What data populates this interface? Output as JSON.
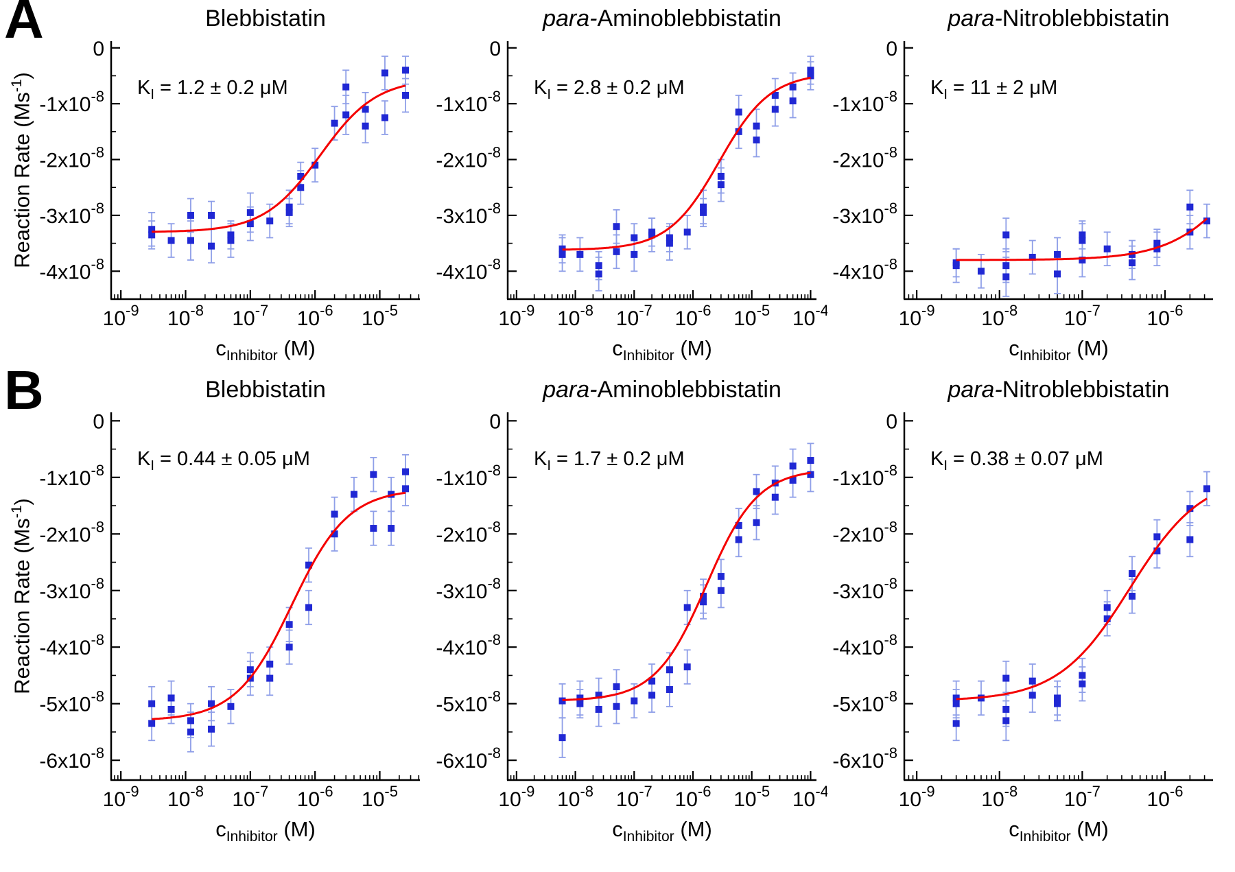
{
  "page": {
    "background": "#ffffff"
  },
  "rows": [
    {
      "letter": "A"
    },
    {
      "letter": "B"
    }
  ],
  "labels": {
    "y_axis": {
      "pre": "Reaction Rate (Ms",
      "sup": "-1",
      "post": ")"
    },
    "x_axis": {
      "pre": "c",
      "sub": "Inhibitor",
      "post": " (M)"
    },
    "tick_base": "10"
  },
  "colors": {
    "axis": "#000000",
    "point": "#2028d4",
    "error_bar": "#8f9fe8",
    "fit_line": "#f40000"
  },
  "chart_data": [
    {
      "type": "scatter",
      "title_italic": "",
      "title_rest": "Blebbistatin",
      "k_label": {
        "pre": "K",
        "sub": "I",
        "post": " = 1.2 ± 0.2 ",
        "unit": "μM"
      },
      "x_log_range": [
        -9.15,
        -4.38
      ],
      "x_ticks_exp": [
        -9,
        -8,
        -7,
        -6,
        -5
      ],
      "y_range": [
        -4.5,
        0.12
      ],
      "y_ticks": [
        0,
        -1,
        -2,
        -3,
        -4
      ],
      "y_unit_exp": -8,
      "fit": {
        "bottom": -3.3,
        "top": -0.55,
        "k_m": 1.2e-06
      },
      "points": [
        {
          "x": 3e-09,
          "y": -3.25,
          "e": 0.3
        },
        {
          "x": 3e-09,
          "y": -3.35,
          "e": 0.25
        },
        {
          "x": 6e-09,
          "y": -3.45,
          "e": 0.3
        },
        {
          "x": 1.2e-08,
          "y": -3.0,
          "e": 0.3
        },
        {
          "x": 1.2e-08,
          "y": -3.45,
          "e": 0.35
        },
        {
          "x": 2.5e-08,
          "y": -3.55,
          "e": 0.3
        },
        {
          "x": 2.5e-08,
          "y": -3.0,
          "e": 0.25
        },
        {
          "x": 5e-08,
          "y": -3.45,
          "e": 0.3
        },
        {
          "x": 5e-08,
          "y": -3.35,
          "e": 0.25
        },
        {
          "x": 1e-07,
          "y": -3.15,
          "e": 0.3
        },
        {
          "x": 1e-07,
          "y": -2.95,
          "e": 0.35
        },
        {
          "x": 2e-07,
          "y": -3.1,
          "e": 0.3
        },
        {
          "x": 4e-07,
          "y": -2.85,
          "e": 0.3
        },
        {
          "x": 4e-07,
          "y": -2.95,
          "e": 0.25
        },
        {
          "x": 6e-07,
          "y": -2.5,
          "e": 0.3
        },
        {
          "x": 6e-07,
          "y": -2.3,
          "e": 0.25
        },
        {
          "x": 1e-06,
          "y": -2.1,
          "e": 0.3
        },
        {
          "x": 2e-06,
          "y": -1.35,
          "e": 0.3
        },
        {
          "x": 3e-06,
          "y": -0.7,
          "e": 0.3
        },
        {
          "x": 3e-06,
          "y": -1.2,
          "e": 0.35
        },
        {
          "x": 6e-06,
          "y": -1.1,
          "e": 0.3
        },
        {
          "x": 6e-06,
          "y": -1.4,
          "e": 0.3
        },
        {
          "x": 1.2e-05,
          "y": -0.45,
          "e": 0.3
        },
        {
          "x": 1.2e-05,
          "y": -1.25,
          "e": 0.3
        },
        {
          "x": 2.5e-05,
          "y": -0.4,
          "e": 0.25
        },
        {
          "x": 2.5e-05,
          "y": -0.85,
          "e": 0.3
        }
      ]
    },
    {
      "type": "scatter",
      "title_italic": "para-",
      "title_rest": "Aminoblebbistatin",
      "k_label": {
        "pre": "K",
        "sub": "I",
        "post": " = 2.8 ± 0.2 ",
        "unit": "μM"
      },
      "x_log_range": [
        -9.15,
        -3.9
      ],
      "x_ticks_exp": [
        -9,
        -8,
        -7,
        -6,
        -5,
        -4
      ],
      "y_range": [
        -4.5,
        0.12
      ],
      "y_ticks": [
        0,
        -1,
        -2,
        -3,
        -4
      ],
      "y_unit_exp": -8,
      "fit": {
        "bottom": -3.62,
        "top": -0.45,
        "k_m": 2.8e-06
      },
      "points": [
        {
          "x": 6e-09,
          "y": -3.7,
          "e": 0.3
        },
        {
          "x": 6e-09,
          "y": -3.6,
          "e": 0.25
        },
        {
          "x": 1.2e-08,
          "y": -3.7,
          "e": 0.3
        },
        {
          "x": 2.5e-08,
          "y": -4.05,
          "e": 0.3
        },
        {
          "x": 2.5e-08,
          "y": -3.9,
          "e": 0.25
        },
        {
          "x": 5e-08,
          "y": -3.2,
          "e": 0.3
        },
        {
          "x": 5e-08,
          "y": -3.65,
          "e": 0.3
        },
        {
          "x": 1e-07,
          "y": -3.7,
          "e": 0.3
        },
        {
          "x": 1e-07,
          "y": -3.4,
          "e": 0.25
        },
        {
          "x": 2e-07,
          "y": -3.35,
          "e": 0.3
        },
        {
          "x": 2e-07,
          "y": -3.3,
          "e": 0.25
        },
        {
          "x": 4e-07,
          "y": -3.5,
          "e": 0.3
        },
        {
          "x": 4e-07,
          "y": -3.4,
          "e": 0.25
        },
        {
          "x": 8e-07,
          "y": -3.3,
          "e": 0.3
        },
        {
          "x": 1.5e-06,
          "y": -2.85,
          "e": 0.3
        },
        {
          "x": 1.5e-06,
          "y": -2.95,
          "e": 0.25
        },
        {
          "x": 3e-06,
          "y": -2.3,
          "e": 0.3
        },
        {
          "x": 3e-06,
          "y": -2.45,
          "e": 0.3
        },
        {
          "x": 6e-06,
          "y": -1.5,
          "e": 0.3
        },
        {
          "x": 6e-06,
          "y": -1.15,
          "e": 0.3
        },
        {
          "x": 1.2e-05,
          "y": -1.4,
          "e": 0.3
        },
        {
          "x": 1.2e-05,
          "y": -1.65,
          "e": 0.3
        },
        {
          "x": 2.5e-05,
          "y": -0.85,
          "e": 0.3
        },
        {
          "x": 2.5e-05,
          "y": -1.1,
          "e": 0.3
        },
        {
          "x": 5e-05,
          "y": -0.7,
          "e": 0.25
        },
        {
          "x": 5e-05,
          "y": -0.95,
          "e": 0.3
        },
        {
          "x": 0.0001,
          "y": -0.5,
          "e": 0.25
        },
        {
          "x": 0.0001,
          "y": -0.4,
          "e": 0.25
        }
      ]
    },
    {
      "type": "scatter",
      "title_italic": "para-",
      "title_rest": "Nitroblebbistatin",
      "k_label": {
        "pre": "K",
        "sub": "I",
        "post": " =  11 ± 2 ",
        "unit": "μM"
      },
      "x_log_range": [
        -9.15,
        -5.42
      ],
      "x_ticks_exp": [
        -9,
        -8,
        -7,
        -6
      ],
      "y_range": [
        -4.5,
        0.12
      ],
      "y_ticks": [
        0,
        -1,
        -2,
        -3,
        -4
      ],
      "y_unit_exp": -8,
      "fit": {
        "bottom": -3.8,
        "top": -0.5,
        "k_m": 1.1e-05
      },
      "points": [
        {
          "x": 3e-09,
          "y": -3.85,
          "e": 0.25
        },
        {
          "x": 3e-09,
          "y": -3.9,
          "e": 0.3
        },
        {
          "x": 6e-09,
          "y": -4.0,
          "e": 0.3
        },
        {
          "x": 1.2e-08,
          "y": -3.35,
          "e": 0.3
        },
        {
          "x": 1.2e-08,
          "y": -3.9,
          "e": 0.3
        },
        {
          "x": 1.2e-08,
          "y": -4.1,
          "e": 0.35
        },
        {
          "x": 2.5e-08,
          "y": -3.75,
          "e": 0.3
        },
        {
          "x": 5e-08,
          "y": -3.7,
          "e": 0.3
        },
        {
          "x": 5e-08,
          "y": -4.05,
          "e": 0.35
        },
        {
          "x": 1e-07,
          "y": -3.45,
          "e": 0.3
        },
        {
          "x": 1e-07,
          "y": -3.35,
          "e": 0.25
        },
        {
          "x": 1e-07,
          "y": -3.8,
          "e": 0.3
        },
        {
          "x": 2e-07,
          "y": -3.6,
          "e": 0.3
        },
        {
          "x": 4e-07,
          "y": -3.85,
          "e": 0.3
        },
        {
          "x": 4e-07,
          "y": -3.7,
          "e": 0.25
        },
        {
          "x": 8e-07,
          "y": -3.6,
          "e": 0.3
        },
        {
          "x": 8e-07,
          "y": -3.5,
          "e": 0.25
        },
        {
          "x": 2e-06,
          "y": -3.3,
          "e": 0.3
        },
        {
          "x": 2e-06,
          "y": -2.85,
          "e": 0.3
        },
        {
          "x": 3.2e-06,
          "y": -3.1,
          "e": 0.3
        }
      ]
    },
    {
      "type": "scatter",
      "title_italic": "",
      "title_rest": "Blebbistatin",
      "k_label": {
        "pre": "K",
        "sub": "I",
        "post": " = 0.44 ± 0.05 ",
        "unit": "μM"
      },
      "x_log_range": [
        -9.15,
        -4.38
      ],
      "x_ticks_exp": [
        -9,
        -8,
        -7,
        -6,
        -5
      ],
      "y_range": [
        -6.35,
        0.15
      ],
      "y_ticks": [
        0,
        -1,
        -2,
        -3,
        -4,
        -5,
        -6
      ],
      "y_unit_exp": -8,
      "fit": {
        "bottom": -5.3,
        "top": -1.2,
        "k_m": 4.4e-07
      },
      "points": [
        {
          "x": 3e-09,
          "y": -5.0,
          "e": 0.3
        },
        {
          "x": 3e-09,
          "y": -5.35,
          "e": 0.3
        },
        {
          "x": 6e-09,
          "y": -4.9,
          "e": 0.3
        },
        {
          "x": 6e-09,
          "y": -5.1,
          "e": 0.25
        },
        {
          "x": 1.2e-08,
          "y": -5.3,
          "e": 0.3
        },
        {
          "x": 1.2e-08,
          "y": -5.5,
          "e": 0.35
        },
        {
          "x": 2.5e-08,
          "y": -5.0,
          "e": 0.3
        },
        {
          "x": 2.5e-08,
          "y": -5.45,
          "e": 0.3
        },
        {
          "x": 5e-08,
          "y": -5.05,
          "e": 0.3
        },
        {
          "x": 1e-07,
          "y": -4.55,
          "e": 0.3
        },
        {
          "x": 1e-07,
          "y": -4.4,
          "e": 0.3
        },
        {
          "x": 2e-07,
          "y": -4.3,
          "e": 0.3
        },
        {
          "x": 2e-07,
          "y": -4.55,
          "e": 0.3
        },
        {
          "x": 4e-07,
          "y": -3.6,
          "e": 0.3
        },
        {
          "x": 4e-07,
          "y": -4.0,
          "e": 0.3
        },
        {
          "x": 8e-07,
          "y": -2.55,
          "e": 0.3
        },
        {
          "x": 8e-07,
          "y": -3.3,
          "e": 0.3
        },
        {
          "x": 2e-06,
          "y": -2.0,
          "e": 0.3
        },
        {
          "x": 2e-06,
          "y": -1.65,
          "e": 0.3
        },
        {
          "x": 4e-06,
          "y": -1.3,
          "e": 0.3
        },
        {
          "x": 8e-06,
          "y": -0.95,
          "e": 0.3
        },
        {
          "x": 8e-06,
          "y": -1.9,
          "e": 0.3
        },
        {
          "x": 1.5e-05,
          "y": -1.3,
          "e": 0.3
        },
        {
          "x": 1.5e-05,
          "y": -1.9,
          "e": 0.3
        },
        {
          "x": 2.5e-05,
          "y": -0.9,
          "e": 0.3
        },
        {
          "x": 2.5e-05,
          "y": -1.2,
          "e": 0.3
        }
      ]
    },
    {
      "type": "scatter",
      "title_italic": "para-",
      "title_rest": "Aminoblebbistatin",
      "k_label": {
        "pre": "K",
        "sub": "I",
        "post": " = 1.7 ± 0.2 ",
        "unit": "μM"
      },
      "x_log_range": [
        -9.15,
        -3.9
      ],
      "x_ticks_exp": [
        -9,
        -8,
        -7,
        -6,
        -5,
        -4
      ],
      "y_range": [
        -6.35,
        0.15
      ],
      "y_ticks": [
        0,
        -1,
        -2,
        -3,
        -4,
        -5,
        -6
      ],
      "y_unit_exp": -8,
      "fit": {
        "bottom": -4.95,
        "top": -0.85,
        "k_m": 1.7e-06
      },
      "points": [
        {
          "x": 6e-09,
          "y": -5.6,
          "e": 0.35
        },
        {
          "x": 6e-09,
          "y": -4.95,
          "e": 0.3
        },
        {
          "x": 1.2e-08,
          "y": -4.9,
          "e": 0.3
        },
        {
          "x": 1.2e-08,
          "y": -5.0,
          "e": 0.25
        },
        {
          "x": 2.5e-08,
          "y": -4.85,
          "e": 0.3
        },
        {
          "x": 2.5e-08,
          "y": -5.1,
          "e": 0.3
        },
        {
          "x": 5e-08,
          "y": -4.7,
          "e": 0.3
        },
        {
          "x": 5e-08,
          "y": -5.05,
          "e": 0.3
        },
        {
          "x": 1e-07,
          "y": -4.95,
          "e": 0.3
        },
        {
          "x": 2e-07,
          "y": -4.6,
          "e": 0.3
        },
        {
          "x": 2e-07,
          "y": -4.85,
          "e": 0.3
        },
        {
          "x": 4e-07,
          "y": -4.75,
          "e": 0.3
        },
        {
          "x": 4e-07,
          "y": -4.4,
          "e": 0.3
        },
        {
          "x": 8e-07,
          "y": -4.35,
          "e": 0.3
        },
        {
          "x": 8e-07,
          "y": -3.3,
          "e": 0.3
        },
        {
          "x": 1.5e-06,
          "y": -3.2,
          "e": 0.3
        },
        {
          "x": 1.5e-06,
          "y": -3.1,
          "e": 0.3
        },
        {
          "x": 3e-06,
          "y": -2.75,
          "e": 0.3
        },
        {
          "x": 3e-06,
          "y": -3.0,
          "e": 0.3
        },
        {
          "x": 6e-06,
          "y": -2.1,
          "e": 0.3
        },
        {
          "x": 6e-06,
          "y": -1.85,
          "e": 0.3
        },
        {
          "x": 1.2e-05,
          "y": -1.25,
          "e": 0.3
        },
        {
          "x": 1.2e-05,
          "y": -1.8,
          "e": 0.3
        },
        {
          "x": 2.5e-05,
          "y": -1.1,
          "e": 0.3
        },
        {
          "x": 2.5e-05,
          "y": -1.35,
          "e": 0.3
        },
        {
          "x": 5e-05,
          "y": -0.8,
          "e": 0.3
        },
        {
          "x": 5e-05,
          "y": -1.05,
          "e": 0.3
        },
        {
          "x": 0.0001,
          "y": -0.7,
          "e": 0.3
        },
        {
          "x": 0.0001,
          "y": -0.95,
          "e": 0.3
        }
      ]
    },
    {
      "type": "scatter",
      "title_italic": "para-",
      "title_rest": "Nitroblebbistatin",
      "k_label": {
        "pre": "K",
        "sub": "I",
        "post": " = 0.38 ± 0.07 ",
        "unit": "μM"
      },
      "x_log_range": [
        -9.15,
        -5.42
      ],
      "x_ticks_exp": [
        -9,
        -8,
        -7,
        -6
      ],
      "y_range": [
        -6.35,
        0.15
      ],
      "y_ticks": [
        0,
        -1,
        -2,
        -3,
        -4,
        -5,
        -6
      ],
      "y_unit_exp": -8,
      "fit": {
        "bottom": -4.95,
        "top": -0.95,
        "k_m": 3.8e-07
      },
      "points": [
        {
          "x": 3e-09,
          "y": -4.9,
          "e": 0.3
        },
        {
          "x": 3e-09,
          "y": -5.35,
          "e": 0.3
        },
        {
          "x": 3e-09,
          "y": -5.0,
          "e": 0.25
        },
        {
          "x": 6e-09,
          "y": -4.9,
          "e": 0.3
        },
        {
          "x": 1.2e-08,
          "y": -5.1,
          "e": 0.3
        },
        {
          "x": 1.2e-08,
          "y": -4.55,
          "e": 0.3
        },
        {
          "x": 1.2e-08,
          "y": -5.3,
          "e": 0.35
        },
        {
          "x": 2.5e-08,
          "y": -4.85,
          "e": 0.3
        },
        {
          "x": 2.5e-08,
          "y": -4.6,
          "e": 0.3
        },
        {
          "x": 5e-08,
          "y": -4.9,
          "e": 0.3
        },
        {
          "x": 5e-08,
          "y": -5.0,
          "e": 0.3
        },
        {
          "x": 1e-07,
          "y": -4.5,
          "e": 0.3
        },
        {
          "x": 1e-07,
          "y": -4.65,
          "e": 0.3
        },
        {
          "x": 2e-07,
          "y": -3.3,
          "e": 0.3
        },
        {
          "x": 2e-07,
          "y": -3.5,
          "e": 0.3
        },
        {
          "x": 4e-07,
          "y": -2.7,
          "e": 0.3
        },
        {
          "x": 4e-07,
          "y": -3.1,
          "e": 0.3
        },
        {
          "x": 8e-07,
          "y": -2.05,
          "e": 0.3
        },
        {
          "x": 8e-07,
          "y": -2.3,
          "e": 0.3
        },
        {
          "x": 2e-06,
          "y": -1.55,
          "e": 0.3
        },
        {
          "x": 2e-06,
          "y": -2.1,
          "e": 0.3
        },
        {
          "x": 3.2e-06,
          "y": -1.2,
          "e": 0.3
        }
      ]
    }
  ]
}
